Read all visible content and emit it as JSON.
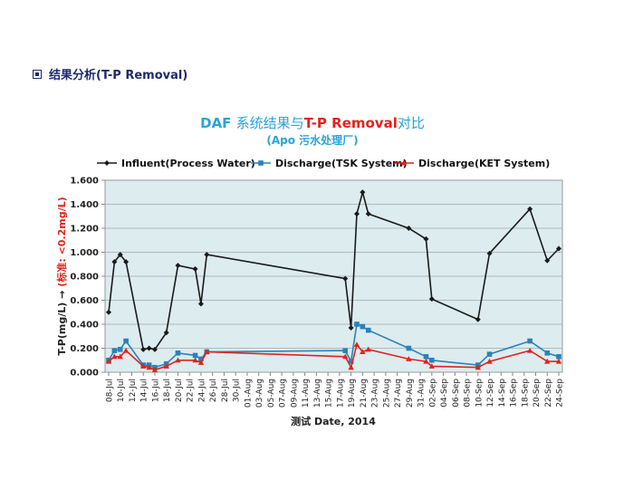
{
  "section": {
    "heading": "结果分析(T-P Removal)"
  },
  "colors": {
    "influent": "#1a1a1a",
    "tsk": "#2a82b9",
    "ket": "#e2231a",
    "title_blue": "#29a3dc",
    "title_red": "#e2231a",
    "plot_bg": "#dcecef",
    "grid": "#a8a8a8"
  },
  "chart_data": {
    "type": "line",
    "title_parts": [
      {
        "text": "DAF ",
        "color": "#29a3dc",
        "weight": "bold"
      },
      {
        "text": "系统结果与",
        "color": "#29a3dc",
        "weight": "normal"
      },
      {
        "text": "T-P Removal",
        "color": "#e2231a",
        "weight": "bold"
      },
      {
        "text": "对比",
        "color": "#29a3dc",
        "weight": "normal"
      }
    ],
    "subtitle": "(Apo 污水处理厂)",
    "ylabel_black": "T-P(mg/L)  →",
    "ylabel_red": "(标准: <0.2mg/L)",
    "xlabel": "测试 Date, 2014",
    "ylim": [
      0,
      1.6
    ],
    "yticks": [
      "0.000",
      "0.200",
      "0.400",
      "0.600",
      "0.800",
      "1.000",
      "1.200",
      "1.400",
      "1.600"
    ],
    "x_start": "2014-07-08",
    "x_end": "2014-09-24",
    "xticks": [
      "08-Jul",
      "10-Jul",
      "12-Jul",
      "14-Jul",
      "16-Jul",
      "18-Jul",
      "20-Jul",
      "22-Jul",
      "24-Jul",
      "26-Jul",
      "28-Jul",
      "30-Jul",
      "01-Aug",
      "03-Aug",
      "05-Aug",
      "07-Aug",
      "09-Aug",
      "11-Aug",
      "13-Aug",
      "15-Aug",
      "17-Aug",
      "19-Aug",
      "21-Aug",
      "23-Aug",
      "25-Aug",
      "27-Aug",
      "29-Aug",
      "31-Aug",
      "02-Sep",
      "04-Sep",
      "06-Sep",
      "08-Sep",
      "10-Sep",
      "12-Sep",
      "14-Sep",
      "16-Sep",
      "18-Sep",
      "20-Sep",
      "22-Sep",
      "24-Sep"
    ],
    "legend_position": "top",
    "grid": "horizontal",
    "series": [
      {
        "name": "Influent(Process Water)",
        "color": "#1a1a1a",
        "marker": "diamond",
        "points": [
          [
            "2014-07-08",
            0.5
          ],
          [
            "2014-07-09",
            0.92
          ],
          [
            "2014-07-10",
            0.98
          ],
          [
            "2014-07-11",
            0.92
          ],
          [
            "2014-07-14",
            0.19
          ],
          [
            "2014-07-15",
            0.2
          ],
          [
            "2014-07-16",
            0.19
          ],
          [
            "2014-07-18",
            0.33
          ],
          [
            "2014-07-20",
            0.89
          ],
          [
            "2014-07-23",
            0.86
          ],
          [
            "2014-07-24",
            0.57
          ],
          [
            "2014-07-25",
            0.98
          ],
          [
            "2014-08-18",
            0.78
          ],
          [
            "2014-08-19",
            0.37
          ],
          [
            "2014-08-20",
            1.32
          ],
          [
            "2014-08-21",
            1.5
          ],
          [
            "2014-08-22",
            1.32
          ],
          [
            "2014-08-29",
            1.2
          ],
          [
            "2014-09-01",
            1.11
          ],
          [
            "2014-09-02",
            0.61
          ],
          [
            "2014-09-10",
            0.44
          ],
          [
            "2014-09-12",
            0.99
          ],
          [
            "2014-09-19",
            1.36
          ],
          [
            "2014-09-22",
            0.93
          ],
          [
            "2014-09-24",
            1.03
          ]
        ]
      },
      {
        "name": "Discharge(TSK System)",
        "color": "#2a82b9",
        "marker": "square",
        "points": [
          [
            "2014-07-08",
            0.1
          ],
          [
            "2014-07-09",
            0.18
          ],
          [
            "2014-07-10",
            0.19
          ],
          [
            "2014-07-11",
            0.26
          ],
          [
            "2014-07-14",
            0.06
          ],
          [
            "2014-07-15",
            0.06
          ],
          [
            "2014-07-16",
            0.04
          ],
          [
            "2014-07-18",
            0.07
          ],
          [
            "2014-07-20",
            0.16
          ],
          [
            "2014-07-23",
            0.14
          ],
          [
            "2014-07-24",
            0.11
          ],
          [
            "2014-07-25",
            0.17
          ],
          [
            "2014-08-18",
            0.18
          ],
          [
            "2014-08-19",
            0.09
          ],
          [
            "2014-08-20",
            0.4
          ],
          [
            "2014-08-21",
            0.38
          ],
          [
            "2014-08-22",
            0.35
          ],
          [
            "2014-08-29",
            0.2
          ],
          [
            "2014-09-01",
            0.13
          ],
          [
            "2014-09-02",
            0.1
          ],
          [
            "2014-09-10",
            0.06
          ],
          [
            "2014-09-12",
            0.15
          ],
          [
            "2014-09-19",
            0.26
          ],
          [
            "2014-09-22",
            0.16
          ],
          [
            "2014-09-24",
            0.13
          ]
        ]
      },
      {
        "name": "Discharge(KET System)",
        "color": "#e2231a",
        "marker": "triangle",
        "points": [
          [
            "2014-07-08",
            0.09
          ],
          [
            "2014-07-09",
            0.13
          ],
          [
            "2014-07-10",
            0.13
          ],
          [
            "2014-07-11",
            0.18
          ],
          [
            "2014-07-14",
            0.05
          ],
          [
            "2014-07-15",
            0.04
          ],
          [
            "2014-07-16",
            0.02
          ],
          [
            "2014-07-18",
            0.05
          ],
          [
            "2014-07-20",
            0.1
          ],
          [
            "2014-07-23",
            0.1
          ],
          [
            "2014-07-24",
            0.08
          ],
          [
            "2014-07-25",
            0.17
          ],
          [
            "2014-08-18",
            0.13
          ],
          [
            "2014-08-19",
            0.04
          ],
          [
            "2014-08-20",
            0.23
          ],
          [
            "2014-08-21",
            0.17
          ],
          [
            "2014-08-22",
            0.19
          ],
          [
            "2014-08-29",
            0.11
          ],
          [
            "2014-09-01",
            0.09
          ],
          [
            "2014-09-02",
            0.05
          ],
          [
            "2014-09-10",
            0.04
          ],
          [
            "2014-09-12",
            0.09
          ],
          [
            "2014-09-19",
            0.18
          ],
          [
            "2014-09-22",
            0.09
          ],
          [
            "2014-09-24",
            0.09
          ]
        ]
      }
    ]
  }
}
